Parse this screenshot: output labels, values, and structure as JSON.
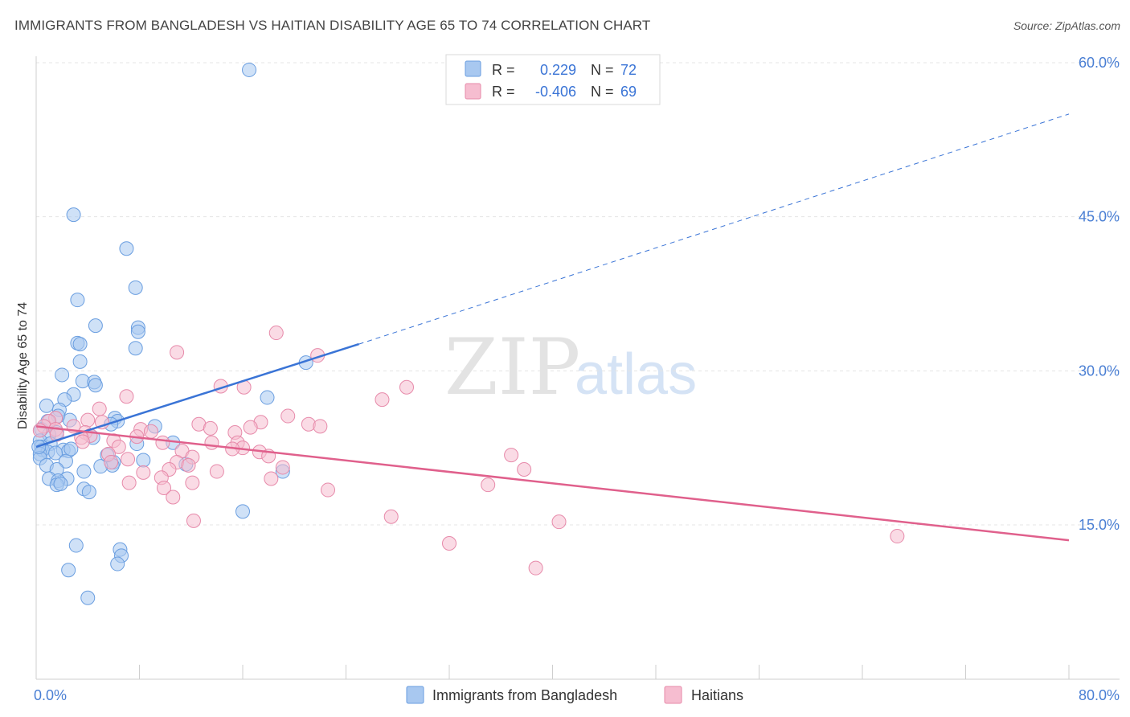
{
  "title": "IMMIGRANTS FROM BANGLADESH VS HAITIAN DISABILITY AGE 65 TO 74 CORRELATION CHART",
  "source": "Source: ZipAtlas.com",
  "watermark": {
    "zip": "ZIP",
    "atlas": "atlas"
  },
  "legend": {
    "rows": [
      {
        "r_label": "R =",
        "r_value": "0.229",
        "n_label": "N =",
        "n_value": "72",
        "color": "#a8c8f0",
        "stroke": "#6a9ee0"
      },
      {
        "r_label": "R =",
        "r_value": "-0.406",
        "n_label": "N =",
        "n_value": "69",
        "color": "#f6bdd0",
        "stroke": "#e78aaa"
      }
    ]
  },
  "bottom_legend": [
    "Immigrants from Bangladesh",
    "Haitians"
  ],
  "chart_data": {
    "type": "scatter",
    "ylabel": "Disability Age 65 to 74",
    "xlim": [
      0,
      80
    ],
    "ylim": [
      0,
      63
    ],
    "x_tick_labels": [
      {
        "value": 0,
        "label": "0.0%"
      },
      {
        "value": 80,
        "label": "80.0%"
      }
    ],
    "y_tick_labels": [
      {
        "value": 15,
        "label": "15.0%"
      },
      {
        "value": 30,
        "label": "30.0%"
      },
      {
        "value": 45,
        "label": "45.0%"
      },
      {
        "value": 60,
        "label": "60.0%"
      }
    ],
    "grid": true,
    "series": [
      {
        "name": "Immigrants from Bangladesh",
        "color": "#6a9ee0",
        "fill": "#a8c8f0",
        "trend": {
          "x0": 0,
          "y0": 22.6,
          "x1": 25,
          "y1": 32.6,
          "dashed_to_x": 80,
          "dashed_to_y": 55.0,
          "color": "#3a74d6"
        },
        "points": [
          [
            16.5,
            59.3
          ],
          [
            2.9,
            45.2
          ],
          [
            7.0,
            41.9
          ],
          [
            7.7,
            38.1
          ],
          [
            3.2,
            36.9
          ],
          [
            4.6,
            34.4
          ],
          [
            7.9,
            34.2
          ],
          [
            7.9,
            33.8
          ],
          [
            3.2,
            32.7
          ],
          [
            3.4,
            32.6
          ],
          [
            7.7,
            32.2
          ],
          [
            20.9,
            30.8
          ],
          [
            3.4,
            30.9
          ],
          [
            2.0,
            29.6
          ],
          [
            3.6,
            29.0
          ],
          [
            4.5,
            28.9
          ],
          [
            4.6,
            28.6
          ],
          [
            2.9,
            27.7
          ],
          [
            17.9,
            27.4
          ],
          [
            2.2,
            27.2
          ],
          [
            0.8,
            26.6
          ],
          [
            1.8,
            26.2
          ],
          [
            1.7,
            25.6
          ],
          [
            6.1,
            25.4
          ],
          [
            2.6,
            25.2
          ],
          [
            0.9,
            25.1
          ],
          [
            6.3,
            25.1
          ],
          [
            5.8,
            24.8
          ],
          [
            9.2,
            24.6
          ],
          [
            0.4,
            24.3
          ],
          [
            1.6,
            24.0
          ],
          [
            1.0,
            23.8
          ],
          [
            4.4,
            23.5
          ],
          [
            0.3,
            23.2
          ],
          [
            1.1,
            22.9
          ],
          [
            0.4,
            22.6
          ],
          [
            7.8,
            22.9
          ],
          [
            10.6,
            23.0
          ],
          [
            0.5,
            22.3
          ],
          [
            2.1,
            22.3
          ],
          [
            2.5,
            22.2
          ],
          [
            0.9,
            22.1
          ],
          [
            1.5,
            22.0
          ],
          [
            0.3,
            21.9
          ],
          [
            0.3,
            21.5
          ],
          [
            2.3,
            21.2
          ],
          [
            8.3,
            21.3
          ],
          [
            6.0,
            21.1
          ],
          [
            11.6,
            20.9
          ],
          [
            5.9,
            20.8
          ],
          [
            0.8,
            20.8
          ],
          [
            5.0,
            20.7
          ],
          [
            1.6,
            20.4
          ],
          [
            3.7,
            20.2
          ],
          [
            19.1,
            20.2
          ],
          [
            1.0,
            19.5
          ],
          [
            2.4,
            19.5
          ],
          [
            1.7,
            19.3
          ],
          [
            1.6,
            18.9
          ],
          [
            1.9,
            19.0
          ],
          [
            3.7,
            18.5
          ],
          [
            4.1,
            18.2
          ],
          [
            16.0,
            16.3
          ],
          [
            3.1,
            13.0
          ],
          [
            6.5,
            12.6
          ],
          [
            6.6,
            12.0
          ],
          [
            6.3,
            11.2
          ],
          [
            2.5,
            10.6
          ],
          [
            4.0,
            7.9
          ],
          [
            5.5,
            21.8
          ],
          [
            0.2,
            22.6
          ],
          [
            2.7,
            22.4
          ]
        ]
      },
      {
        "name": "Haitians",
        "color": "#e78aaa",
        "fill": "#f6bdd0",
        "trend": {
          "x0": 0,
          "y0": 24.6,
          "x1": 80,
          "y1": 13.5,
          "color": "#e0608c"
        },
        "points": [
          [
            18.6,
            33.7
          ],
          [
            21.8,
            31.5
          ],
          [
            10.9,
            31.8
          ],
          [
            14.3,
            28.5
          ],
          [
            16.1,
            28.4
          ],
          [
            28.7,
            28.4
          ],
          [
            7.0,
            27.5
          ],
          [
            26.8,
            27.2
          ],
          [
            4.9,
            26.3
          ],
          [
            19.5,
            25.6
          ],
          [
            1.5,
            25.4
          ],
          [
            4.0,
            25.2
          ],
          [
            1.0,
            25.1
          ],
          [
            5.1,
            25.0
          ],
          [
            17.4,
            25.0
          ],
          [
            21.1,
            24.8
          ],
          [
            22.0,
            24.6
          ],
          [
            12.6,
            24.8
          ],
          [
            2.9,
            24.6
          ],
          [
            0.6,
            24.6
          ],
          [
            16.6,
            24.5
          ],
          [
            1.5,
            24.3
          ],
          [
            0.3,
            24.2
          ],
          [
            8.1,
            24.3
          ],
          [
            13.5,
            24.4
          ],
          [
            3.8,
            24.0
          ],
          [
            8.9,
            24.1
          ],
          [
            15.4,
            24.0
          ],
          [
            1.6,
            23.8
          ],
          [
            4.2,
            23.7
          ],
          [
            7.8,
            23.6
          ],
          [
            3.5,
            23.5
          ],
          [
            6.0,
            23.2
          ],
          [
            3.6,
            23.1
          ],
          [
            13.6,
            23.0
          ],
          [
            9.8,
            23.0
          ],
          [
            15.6,
            23.0
          ],
          [
            6.4,
            22.6
          ],
          [
            16.0,
            22.5
          ],
          [
            15.2,
            22.4
          ],
          [
            17.3,
            22.1
          ],
          [
            11.3,
            22.2
          ],
          [
            5.6,
            21.9
          ],
          [
            18.0,
            21.7
          ],
          [
            12.1,
            21.6
          ],
          [
            36.8,
            21.8
          ],
          [
            7.1,
            21.4
          ],
          [
            10.9,
            21.1
          ],
          [
            5.8,
            21.1
          ],
          [
            11.8,
            20.8
          ],
          [
            19.1,
            20.6
          ],
          [
            37.8,
            20.4
          ],
          [
            10.3,
            20.4
          ],
          [
            14.0,
            20.2
          ],
          [
            8.3,
            20.1
          ],
          [
            9.7,
            19.6
          ],
          [
            18.2,
            19.5
          ],
          [
            7.2,
            19.1
          ],
          [
            12.1,
            19.1
          ],
          [
            35.0,
            18.9
          ],
          [
            9.9,
            18.6
          ],
          [
            22.6,
            18.4
          ],
          [
            10.6,
            17.7
          ],
          [
            27.5,
            15.8
          ],
          [
            12.2,
            15.4
          ],
          [
            40.5,
            15.3
          ],
          [
            66.7,
            13.9
          ],
          [
            32.0,
            13.2
          ],
          [
            38.7,
            10.8
          ]
        ]
      }
    ]
  }
}
